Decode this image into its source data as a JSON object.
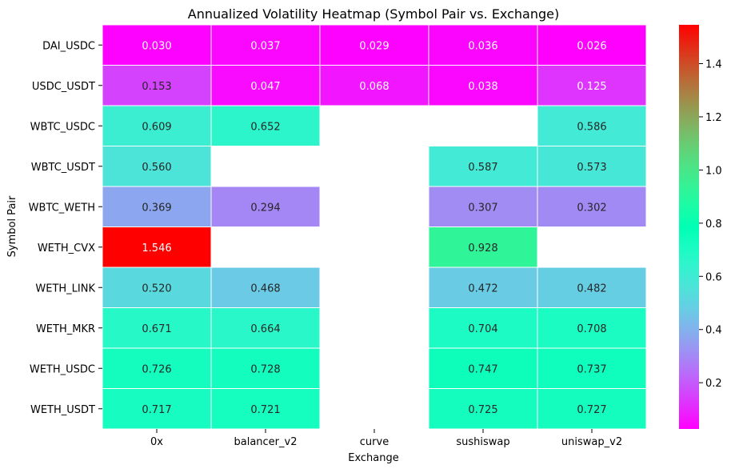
{
  "chart_data": {
    "type": "heatmap",
    "title": "Annualized Volatility Heatmap (Symbol Pair vs. Exchange)",
    "xlabel": "Exchange",
    "ylabel": "Symbol Pair",
    "x_categories": [
      "0x",
      "balancer_v2",
      "curve",
      "sushiswap",
      "uniswap_v2"
    ],
    "y_categories": [
      "DAI_USDC",
      "USDC_USDT",
      "WBTC_USDC",
      "WBTC_USDT",
      "WBTC_WETH",
      "WETH_CVX",
      "WETH_LINK",
      "WETH_MKR",
      "WETH_USDC",
      "WETH_USDT"
    ],
    "values": [
      [
        0.03,
        0.037,
        0.029,
        0.036,
        0.026
      ],
      [
        0.153,
        0.047,
        0.068,
        0.038,
        0.125
      ],
      [
        0.609,
        0.652,
        null,
        null,
        0.586
      ],
      [
        0.56,
        null,
        null,
        0.587,
        0.573
      ],
      [
        0.369,
        0.294,
        null,
        0.307,
        0.302
      ],
      [
        1.546,
        null,
        null,
        0.928,
        null
      ],
      [
        0.52,
        0.468,
        null,
        0.472,
        0.482
      ],
      [
        0.671,
        0.664,
        null,
        0.704,
        0.708
      ],
      [
        0.726,
        0.728,
        null,
        0.747,
        0.737
      ],
      [
        0.717,
        0.721,
        null,
        0.725,
        0.727
      ]
    ],
    "value_format": "0.000",
    "colormap": "rainbow",
    "color_range": [
      0.026,
      1.546
    ],
    "colorbar_ticks": [
      0.2,
      0.4,
      0.6,
      0.8,
      1.0,
      1.2,
      1.4
    ],
    "colorbar_tick_labels": [
      "0.2",
      "0.4",
      "0.6",
      "0.8",
      "1.0",
      "1.2",
      "1.4"
    ],
    "grid": false,
    "legend": "colorbar-right"
  }
}
